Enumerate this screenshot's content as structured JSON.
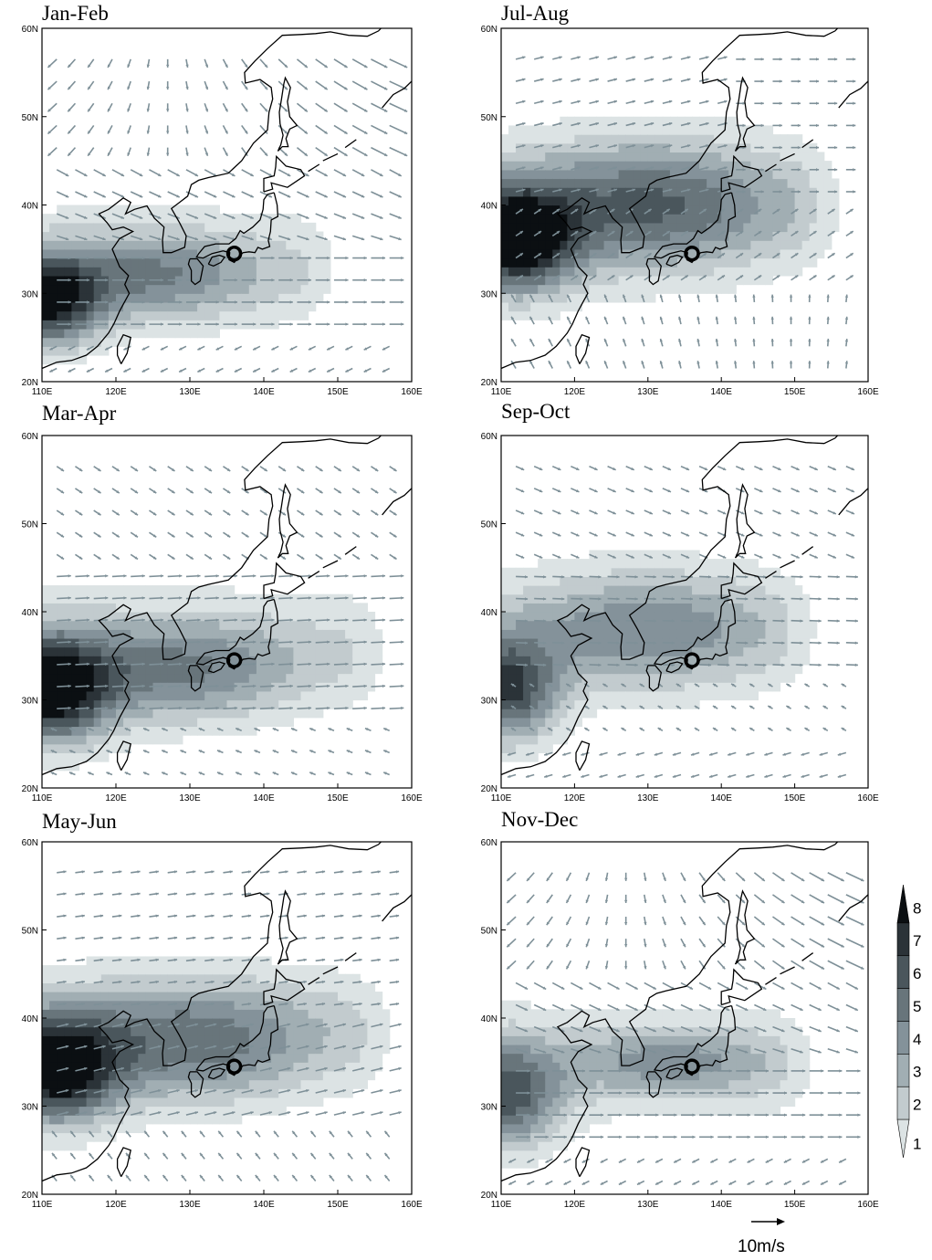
{
  "figure": {
    "panels": [
      {
        "id": "jan-feb",
        "title": "Jan-Feb",
        "xticks": [
          "110E",
          "120E",
          "130E",
          "140E",
          "150E",
          "160E"
        ],
        "yticks": [
          "60N",
          "50N",
          "40N",
          "30N",
          "20N"
        ],
        "field": {
          "centers": [
            {
              "lon": 111,
              "lat": 29,
              "amp": 7.2,
              "sx": 7,
              "sy": 5
            },
            {
              "lon": 125,
              "lat": 32,
              "amp": 3.5,
              "sx": 14,
              "sy": 5
            }
          ],
          "tail": {
            "amp": 1.8,
            "lat": 33,
            "lonEnd": 153
          }
        },
        "wind": "winter"
      },
      {
        "id": "jul-aug",
        "title": "Jul-Aug",
        "xticks": [
          "110E",
          "120E",
          "130E",
          "140E",
          "150E",
          "160E"
        ],
        "yticks": [
          "60N",
          "50N",
          "40N",
          "30N",
          "20N"
        ],
        "field": {
          "centers": [
            {
              "lon": 112,
              "lat": 36,
              "amp": 8.2,
              "sx": 8,
              "sy": 6
            },
            {
              "lon": 130,
              "lat": 40,
              "amp": 4.5,
              "sx": 18,
              "sy": 8
            }
          ],
          "tail": {
            "amp": 1.8,
            "lat": 40,
            "lonEnd": 158
          }
        },
        "wind": "summer"
      },
      {
        "id": "mar-apr",
        "title": "Mar-Apr",
        "xticks": [
          "110E",
          "120E",
          "130E",
          "140E",
          "150E",
          "160E"
        ],
        "yticks": [
          "60N",
          "50N",
          "40N",
          "30N",
          "20N"
        ],
        "field": {
          "centers": [
            {
              "lon": 111,
              "lat": 31,
              "amp": 8.2,
              "sx": 8,
              "sy": 6
            },
            {
              "lon": 128,
              "lat": 33,
              "amp": 3.8,
              "sx": 16,
              "sy": 6
            }
          ],
          "tail": {
            "amp": 1.8,
            "lat": 36,
            "lonEnd": 160
          }
        },
        "wind": "spring"
      },
      {
        "id": "sep-oct",
        "title": "Sep-Oct",
        "xticks": [
          "110E",
          "120E",
          "130E",
          "140E",
          "150E",
          "160E"
        ],
        "yticks": [
          "60N",
          "50N",
          "40N",
          "30N",
          "20N"
        ],
        "field": {
          "centers": [
            {
              "lon": 111,
              "lat": 31,
              "amp": 6.5,
              "sx": 7,
              "sy": 6
            },
            {
              "lon": 130,
              "lat": 38,
              "amp": 3.2,
              "sx": 16,
              "sy": 7
            }
          ],
          "tail": {
            "amp": 1.8,
            "lat": 38,
            "lonEnd": 155
          }
        },
        "wind": "autumn"
      },
      {
        "id": "may-jun",
        "title": "May-Jun",
        "xticks": [
          "110E",
          "120E",
          "130E",
          "140E",
          "150E",
          "160E"
        ],
        "yticks": [
          "60N",
          "50N",
          "40N",
          "30N",
          "20N"
        ],
        "field": {
          "centers": [
            {
              "lon": 112,
              "lat": 34,
              "amp": 8.2,
              "sx": 8,
              "sy": 6
            },
            {
              "lon": 130,
              "lat": 37,
              "amp": 4.2,
              "sx": 17,
              "sy": 7
            }
          ],
          "tail": {
            "amp": 1.8,
            "lat": 39,
            "lonEnd": 160
          }
        },
        "wind": "earlysummer"
      },
      {
        "id": "nov-dec",
        "title": "Nov-Dec",
        "xticks": [
          "110E",
          "120E",
          "130E",
          "140E",
          "150E",
          "160E"
        ],
        "yticks": [
          "60N",
          "50N",
          "40N",
          "30N",
          "20N"
        ],
        "field": {
          "centers": [
            {
              "lon": 111,
              "lat": 31,
              "amp": 5.5,
              "sx": 7,
              "sy": 6
            },
            {
              "lon": 133,
              "lat": 35,
              "amp": 2.8,
              "sx": 14,
              "sy": 4
            }
          ],
          "tail": {
            "amp": 1.8,
            "lat": 35,
            "lonEnd": 155
          }
        },
        "wind": "winter"
      }
    ],
    "site_marker": {
      "lon": 136,
      "lat": 34.5
    },
    "legend": {
      "levels": [
        "8",
        "7",
        "6",
        "5",
        "4",
        "3",
        "2",
        "1"
      ],
      "colors": [
        "#0b0f12",
        "#2b3338",
        "#4a565c",
        "#68757b",
        "#84929a",
        "#a1aeb3",
        "#c2cbce",
        "#dce3e4"
      ]
    },
    "reference_vector": {
      "label": "10m/s"
    },
    "colors": {
      "arrow": "#7e9098",
      "coast": "#000000",
      "background": "#ffffff"
    }
  }
}
